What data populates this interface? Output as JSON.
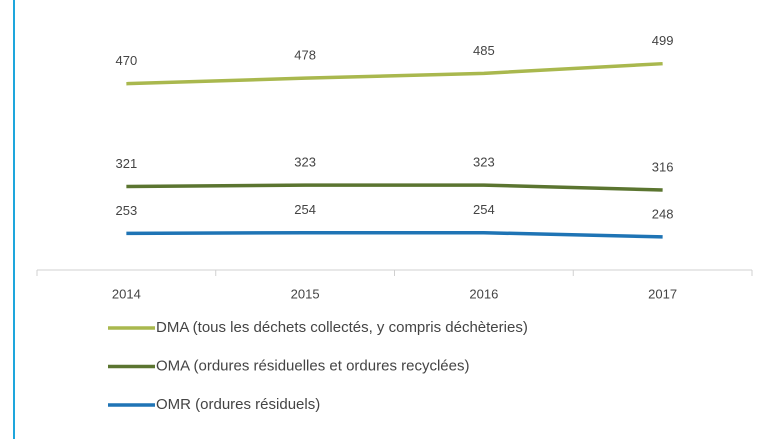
{
  "chart_data": {
    "type": "line",
    "categories": [
      "2014",
      "2015",
      "2016",
      "2017"
    ],
    "series": [
      {
        "name": "DMA (tous les déchets collectés, y compris déchèteries)",
        "color": "#a9b84e",
        "values": [
          470,
          478,
          485,
          499
        ]
      },
      {
        "name": "OMA (ordures résiduelles et ordures recyclées)",
        "color": "#5b7530",
        "values": [
          321,
          323,
          323,
          316
        ]
      },
      {
        "name": "OMR (ordures résiduels)",
        "color": "#1f74b5",
        "values": [
          253,
          254,
          254,
          248
        ]
      }
    ],
    "ylim": [
      200,
      500
    ],
    "legend": "bottom"
  }
}
